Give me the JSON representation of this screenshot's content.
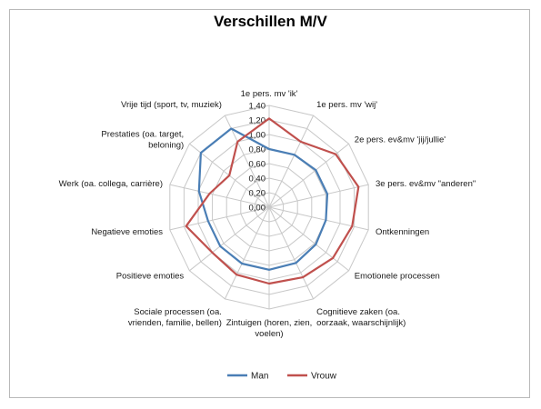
{
  "chart_data": {
    "type": "radar",
    "title": "Verschillen M/V",
    "categories": [
      [
        "1e pers. mv 'ik'"
      ],
      [
        "1e pers. mv 'wij'"
      ],
      [
        "2e pers. ev&mv 'jij/jullie'"
      ],
      [
        "3e pers. ev&mv  \"anderen\""
      ],
      [
        "Ontkenningen"
      ],
      [
        "Emotionele processen"
      ],
      [
        "Cognitieve zaken (oa.",
        "oorzaak, waarschijnlijk)"
      ],
      [
        "Zintuigen (horen, zien,",
        "voelen)"
      ],
      [
        "Sociale processen (oa.",
        "vrienden, familie, bellen)"
      ],
      [
        "Positieve emoties"
      ],
      [
        "Negatieve emoties"
      ],
      [
        "Werk (oa. collega, carrière)"
      ],
      [
        "Prestaties (oa. target,",
        "beloning)"
      ],
      [
        "Vrije tijd (sport, tv, muziek)"
      ]
    ],
    "ticks": [
      "0,00",
      "0,20",
      "0,40",
      "0,60",
      "0,80",
      "1,00",
      "1,20",
      "1,40"
    ],
    "rmax": 1.4,
    "series": [
      {
        "name": "Man",
        "color": "#4a7eb5",
        "values": [
          0.8,
          0.8,
          0.82,
          0.82,
          0.8,
          0.82,
          0.85,
          0.86,
          0.86,
          0.86,
          0.86,
          0.99,
          1.2,
          1.2
        ]
      },
      {
        "name": "Vrouw",
        "color": "#c0504d",
        "values": [
          1.22,
          1.0,
          1.17,
          1.26,
          1.17,
          1.12,
          1.07,
          1.05,
          1.03,
          1.0,
          1.17,
          0.84,
          0.7,
          1.0
        ]
      }
    ],
    "legend": "bottom",
    "grid": true
  }
}
